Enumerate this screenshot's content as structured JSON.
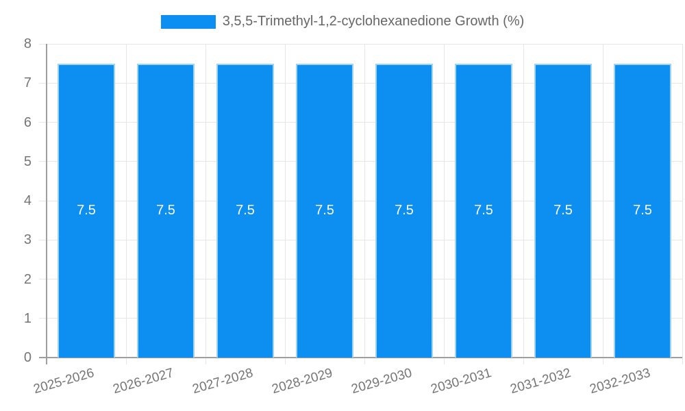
{
  "legend": {
    "label": "3,5,5-Trimethyl-1,2-cyclohexanedione Growth (%)"
  },
  "chart_data": {
    "type": "bar",
    "title": "3,5,5-Trimethyl-1,2-cyclohexanedione Growth (%)",
    "categories": [
      "2025-2026",
      "2026-2027",
      "2027-2028",
      "2028-2029",
      "2029-2030",
      "2030-2031",
      "2031-2032",
      "2032-2033"
    ],
    "values": [
      7.5,
      7.5,
      7.5,
      7.5,
      7.5,
      7.5,
      7.5,
      7.5
    ],
    "bar_labels": [
      "7.5",
      "7.5",
      "7.5",
      "7.5",
      "7.5",
      "7.5",
      "7.5",
      "7.5"
    ],
    "xlabel": "",
    "ylabel": "",
    "ylim": [
      0,
      8
    ],
    "yticks": [
      0,
      1,
      2,
      3,
      4,
      5,
      6,
      7,
      8
    ],
    "grid": true,
    "legend_position": "top"
  },
  "colors": {
    "bar_fill": "#0d8ff2",
    "bar_border": "#9fd3f8",
    "bar_value_text": "#ffffff",
    "gridline": "#e6e6e6",
    "axis_line": "#9e9e9e",
    "tick_text": "#757575",
    "legend_text": "#666666",
    "background": "#ffffff"
  }
}
